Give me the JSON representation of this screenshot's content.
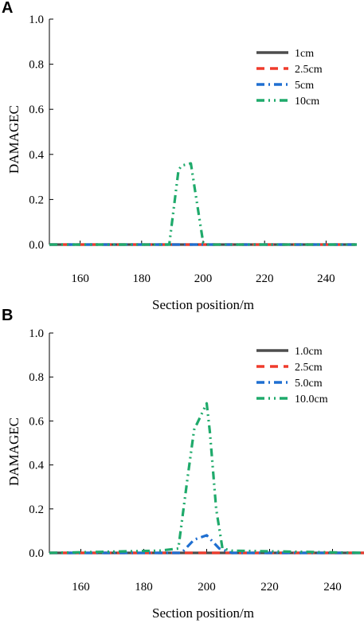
{
  "chart_data": [
    {
      "panel": "A",
      "type": "line",
      "xlabel": "Section position/m",
      "ylabel": "DAMAGEC",
      "xlim": [
        150,
        250
      ],
      "ylim": [
        0,
        1.0
      ],
      "xticks": [
        160,
        180,
        200,
        220,
        240
      ],
      "yticks": [
        0.0,
        0.2,
        0.4,
        0.6,
        0.8,
        1.0
      ],
      "ytick_labels": [
        "0.0",
        "0.2",
        "0.4",
        "0.6",
        "0.8",
        "1.0"
      ],
      "legend_position": "top-right",
      "series": [
        {
          "name": "1cm",
          "color": "#4d4d4d",
          "dash": "solid",
          "x": [
            150,
            250
          ],
          "y": [
            0,
            0
          ]
        },
        {
          "name": "2.5cm",
          "color": "#ef3b2c",
          "dash": "dash",
          "x": [
            150,
            250
          ],
          "y": [
            0,
            0
          ]
        },
        {
          "name": "5cm",
          "color": "#1f6fd1",
          "dash": "dashdot",
          "x": [
            150,
            250
          ],
          "y": [
            0,
            0
          ]
        },
        {
          "name": "10cm",
          "color": "#1faa6b",
          "dash": "dashdotdot",
          "x": [
            150,
            189,
            192,
            193,
            196,
            200,
            201,
            250
          ],
          "y": [
            0,
            0,
            0.33,
            0.35,
            0.36,
            0.01,
            0,
            0
          ]
        }
      ]
    },
    {
      "panel": "B",
      "type": "line",
      "xlabel": "Section position/m",
      "ylabel": "DAMAGEC",
      "xlim": [
        150,
        250
      ],
      "ylim": [
        0,
        1.0
      ],
      "xticks": [
        160,
        180,
        200,
        220,
        240
      ],
      "yticks": [
        0.0,
        0.2,
        0.4,
        0.6,
        0.8,
        1.0
      ],
      "ytick_labels": [
        "0.0",
        "0.2",
        "0.4",
        "0.6",
        "0.8",
        "1.0"
      ],
      "legend_position": "top-right",
      "series": [
        {
          "name": "1.0cm",
          "color": "#4d4d4d",
          "dash": "solid",
          "x": [
            150,
            250
          ],
          "y": [
            0,
            0
          ]
        },
        {
          "name": "2.5cm",
          "color": "#ef3b2c",
          "dash": "dash",
          "x": [
            150,
            250
          ],
          "y": [
            0,
            0
          ]
        },
        {
          "name": "5.0cm",
          "color": "#1f6fd1",
          "dash": "dashdot",
          "x": [
            150,
            192,
            196,
            200,
            204,
            208,
            250
          ],
          "y": [
            0,
            0,
            0.06,
            0.08,
            0.02,
            0,
            0
          ]
        },
        {
          "name": "10.0cm",
          "color": "#1faa6b",
          "dash": "dashdotdot",
          "x": [
            150,
            185,
            191,
            194,
            196,
            198,
            200,
            201,
            203,
            205,
            208,
            250
          ],
          "y": [
            0,
            0.01,
            0.02,
            0.35,
            0.56,
            0.62,
            0.68,
            0.55,
            0.2,
            0.02,
            0.01,
            0
          ]
        }
      ]
    }
  ]
}
